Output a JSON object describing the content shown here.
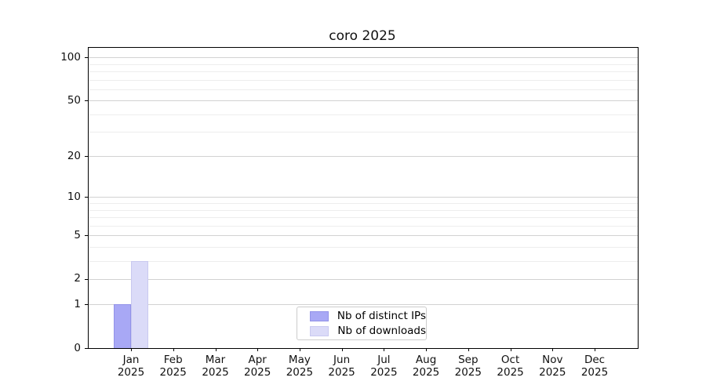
{
  "title": "coro 2025",
  "legend": {
    "items": [
      {
        "label": "Nb of distinct IPs",
        "color": "#a8a8f5",
        "edge_color": "#9393e8"
      },
      {
        "label": "Nb of downloads",
        "color": "#dbdbf8",
        "edge_color": "#c9c9f0"
      }
    ]
  },
  "axis": {
    "months": [
      "Jan",
      "Feb",
      "Mar",
      "Apr",
      "May",
      "Jun",
      "Jul",
      "Aug",
      "Sep",
      "Oct",
      "Nov",
      "Dec"
    ],
    "year_label": "2025",
    "y_tick_labels": [
      "0",
      "1",
      "2",
      "5",
      "10",
      "20",
      "50",
      "100"
    ]
  },
  "chart_data": {
    "type": "bar",
    "title": "coro 2025",
    "categories": [
      "Jan 2025",
      "Feb 2025",
      "Mar 2025",
      "Apr 2025",
      "May 2025",
      "Jun 2025",
      "Jul 2025",
      "Aug 2025",
      "Sep 2025",
      "Oct 2025",
      "Nov 2025",
      "Dec 2025"
    ],
    "series": [
      {
        "name": "Nb of distinct IPs",
        "values": [
          1,
          0,
          0,
          0,
          0,
          0,
          0,
          0,
          0,
          0,
          0,
          0
        ],
        "color": "#a8a8f5",
        "edge_color": "#9393e8"
      },
      {
        "name": "Nb of downloads",
        "values": [
          3,
          0,
          0,
          0,
          0,
          0,
          0,
          0,
          0,
          0,
          0,
          0
        ],
        "color": "#dbdbf8",
        "edge_color": "#c9c9f0"
      }
    ],
    "xlabel": "",
    "ylabel": "",
    "yscale": "log1p",
    "y_major_ticks": [
      0,
      1,
      2,
      5,
      10,
      20,
      50,
      100
    ],
    "y_minor_gridlines": [
      3,
      4,
      6,
      7,
      8,
      9,
      30,
      40,
      60,
      70,
      80,
      90
    ],
    "ylim": [
      0,
      115
    ],
    "grid": "horizontal major and minor gridlines",
    "legend_position": "lower center inside plot",
    "background_color": "#ffffff",
    "gridline_major_color": "#d2d2d2",
    "gridline_minor_color": "#ededed"
  }
}
